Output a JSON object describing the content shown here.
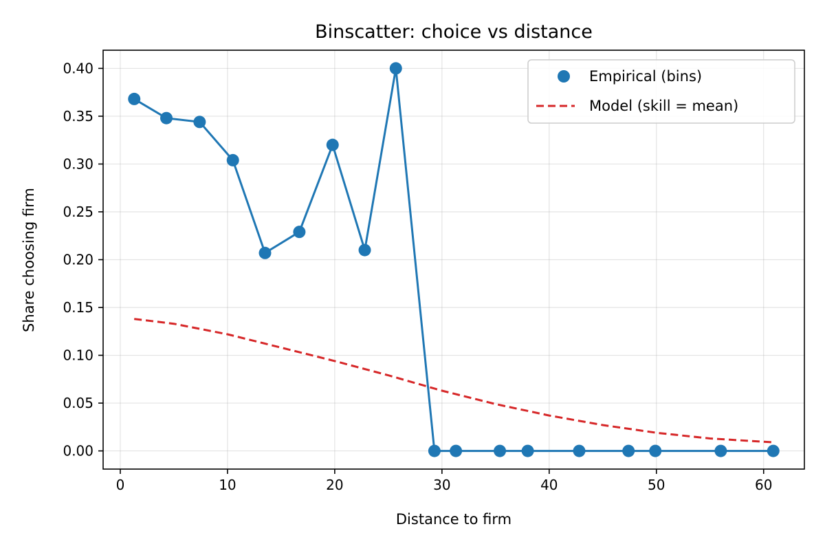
{
  "chart_data": {
    "type": "scatter",
    "title": "Binscatter: choice vs distance",
    "xlabel": "Distance to firm",
    "ylabel": "Share choosing firm",
    "xlim": [
      -1.6,
      63.8
    ],
    "ylim": [
      -0.019,
      0.419
    ],
    "xticks": [
      0,
      10,
      20,
      30,
      40,
      50,
      60
    ],
    "yticks": [
      0.0,
      0.05,
      0.1,
      0.15,
      0.2,
      0.25,
      0.3,
      0.35,
      0.4
    ],
    "grid": true,
    "legend_position": "top-right",
    "series": [
      {
        "name": "Empirical (bins)",
        "kind": "scatter-line",
        "color": "#1f77b4",
        "x": [
          1.3,
          4.3,
          7.4,
          10.5,
          13.5,
          16.7,
          19.8,
          22.8,
          25.7,
          29.3,
          31.3,
          35.4,
          38.0,
          42.8,
          47.4,
          49.9,
          56.0,
          60.9
        ],
        "y": [
          0.368,
          0.348,
          0.344,
          0.304,
          0.207,
          0.229,
          0.32,
          0.21,
          0.4,
          0.0,
          0.0,
          0.0,
          0.0,
          0.0,
          0.0,
          0.0,
          0.0,
          0.0
        ]
      },
      {
        "name": "Model (skill = mean)",
        "kind": "dashed-line",
        "color": "#d62728",
        "x": [
          1.3,
          5,
          10,
          15,
          20,
          25,
          30,
          35,
          40,
          45,
          50,
          55,
          60.9
        ],
        "y": [
          0.138,
          0.133,
          0.122,
          0.108,
          0.094,
          0.079,
          0.063,
          0.049,
          0.037,
          0.027,
          0.019,
          0.013,
          0.009
        ]
      }
    ]
  }
}
